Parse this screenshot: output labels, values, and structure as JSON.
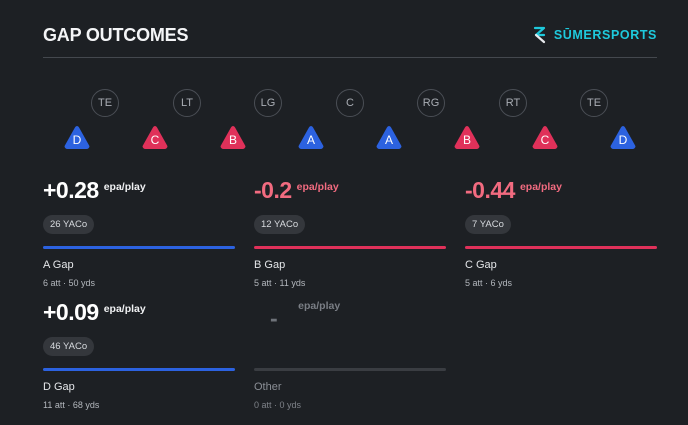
{
  "header": {
    "title": "GAP OUTCOMES",
    "brand": "SŪMERSPORTS"
  },
  "colors": {
    "blue": "#2c62e0",
    "red": "#e0315a",
    "positive": "#ffffff",
    "negative": "#f26b80",
    "muted": "#55585e",
    "brand": "#1ec9dc"
  },
  "positions": [
    "TE",
    "LT",
    "LG",
    "C",
    "RG",
    "RT",
    "TE"
  ],
  "gaps": [
    {
      "label": "D",
      "color": "blue"
    },
    {
      "label": "C",
      "color": "red"
    },
    {
      "label": "B",
      "color": "red"
    },
    {
      "label": "A",
      "color": "blue"
    },
    {
      "label": "A",
      "color": "blue"
    },
    {
      "label": "B",
      "color": "red"
    },
    {
      "label": "C",
      "color": "red"
    },
    {
      "label": "D",
      "color": "blue"
    }
  ],
  "metrics": [
    {
      "value": "+0.28",
      "unit": "epa/play",
      "yaco": "26 YACo",
      "name": "A Gap",
      "stats": "6 att · 50 yds",
      "bar_color": "blue",
      "tone": "positive"
    },
    {
      "value": "-0.2",
      "unit": "epa/play",
      "yaco": "12 YACo",
      "name": "B Gap",
      "stats": "5 att · 11 yds",
      "bar_color": "red",
      "tone": "negative"
    },
    {
      "value": "-0.44",
      "unit": "epa/play",
      "yaco": "7 YACo",
      "name": "C Gap",
      "stats": "5 att · 6 yds",
      "bar_color": "red",
      "tone": "negative"
    },
    {
      "value": "+0.09",
      "unit": "epa/play",
      "yaco": "46 YACo",
      "name": "D Gap",
      "stats": "11 att · 68 yds",
      "bar_color": "blue",
      "tone": "positive"
    },
    {
      "value": "-",
      "unit": "epa/play",
      "yaco": "",
      "name": "Other",
      "stats": "0 att · 0 yds",
      "bar_color": "muted",
      "tone": "muted"
    }
  ]
}
